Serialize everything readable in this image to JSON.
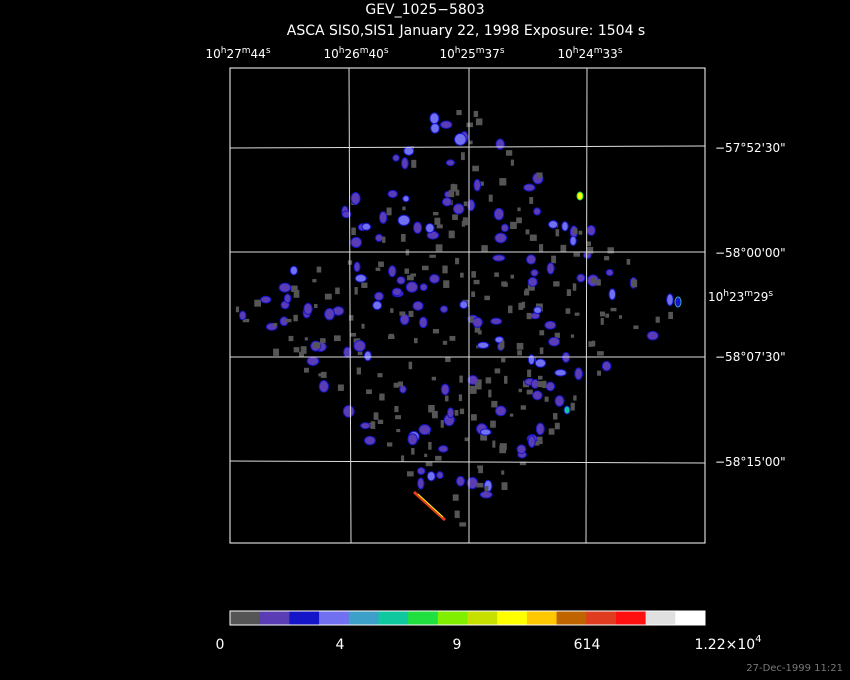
{
  "header": {
    "title": "GEV_1025−5803",
    "subtitle": "ASCA SIS0,SIS1 January 22, 1998 Exposure: 1504 s"
  },
  "ra_labels": [
    [
      "10",
      "h",
      "27",
      "m",
      "44",
      "s"
    ],
    [
      "10",
      "h",
      "26",
      "m",
      "40",
      "s"
    ],
    [
      "10",
      "h",
      "25",
      "m",
      "37",
      "s"
    ],
    [
      "10",
      "h",
      "24",
      "m",
      "33",
      "s"
    ],
    [
      "10",
      "h",
      "23",
      "m",
      "29",
      "s"
    ]
  ],
  "dec_labels": [
    "−57°52'30\"",
    "−58°00'00\"",
    "−58°07'30\"",
    "−58°15'00\""
  ],
  "colorbar": {
    "labels": [
      [
        "0"
      ],
      [
        "4"
      ],
      [
        "9"
      ],
      [
        "614"
      ],
      [
        "1.22×10",
        "4"
      ]
    ],
    "colors": [
      "#555555",
      "#5a3cb4",
      "#1414c8",
      "#7070f0",
      "#3ca0c8",
      "#10c8a0",
      "#20e040",
      "#80f000",
      "#c8e000",
      "#ffff00",
      "#ffc800",
      "#c06400",
      "#e03c20",
      "#ff1010",
      "#e0e0e0",
      "#ffffff"
    ]
  },
  "footer": "27-Dec-1999 11:21"
}
